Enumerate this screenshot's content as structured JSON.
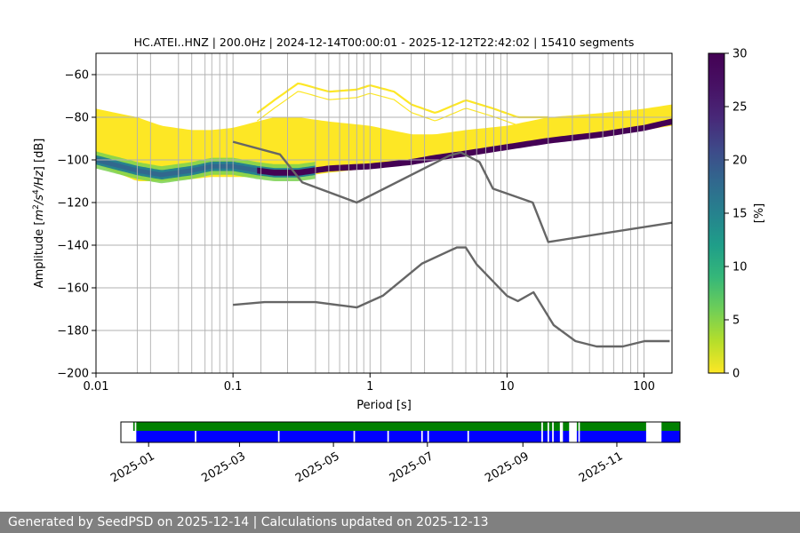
{
  "chart_data": [
    {
      "type": "heatmap",
      "title": "HC.ATEI..HNZ | 200.0Hz | 2024-12-14T00:00:01 - 2025-12-12T22:42:02 | 15410 segments",
      "xlabel": "Period [s]",
      "ylabel_parts": [
        "Amplitude [",
        "m",
        "2",
        "/",
        "s",
        "4",
        "/",
        "Hz",
        "] [dB]"
      ],
      "x_scale": "log",
      "xlim": [
        0.01,
        160
      ],
      "ylim": [
        -200,
        -50
      ],
      "x_ticks": [
        {
          "value": 0.01,
          "label": "0.01"
        },
        {
          "value": 0.1,
          "label": "0.1"
        },
        {
          "value": 1,
          "label": "1"
        },
        {
          "value": 10,
          "label": "10"
        },
        {
          "value": 100,
          "label": "100"
        }
      ],
      "y_ticks": [
        {
          "value": -60,
          "label": "−60"
        },
        {
          "value": -80,
          "label": "−80"
        },
        {
          "value": -100,
          "label": "−100"
        },
        {
          "value": -120,
          "label": "−120"
        },
        {
          "value": -140,
          "label": "−140"
        },
        {
          "value": -160,
          "label": "−160"
        },
        {
          "value": -180,
          "label": "−180"
        },
        {
          "value": -200,
          "label": "−200"
        }
      ],
      "vertical_grid_periods": [
        0.02,
        0.025,
        0.04,
        0.05,
        0.0625,
        0.07,
        0.08,
        0.09,
        0.1,
        0.16,
        0.25,
        0.4,
        0.5,
        0.6,
        0.7,
        0.8,
        0.9,
        1.0,
        1.2,
        2.0,
        2.5,
        4.0,
        5.0,
        6.0,
        7.0,
        8.0,
        9.0,
        10.0,
        20.0,
        30.0,
        40.0,
        50.0,
        60.0,
        70.0,
        80.0,
        90.0,
        100.0
      ],
      "grid": true,
      "heatmap_bands": [
        {
          "name": "mode",
          "period": [
            0.01,
            0.02,
            0.03,
            0.05,
            0.07,
            0.1,
            0.15,
            0.2,
            0.3,
            0.5,
            1,
            2,
            3,
            5,
            10,
            20,
            50,
            100,
            160
          ],
          "dB": [
            -100,
            -105,
            -107,
            -105,
            -103,
            -103,
            -105,
            -106,
            -106,
            -104,
            -103,
            -101,
            -99,
            -97,
            -94,
            -91,
            -88,
            -85,
            -82
          ]
        },
        {
          "name": "upper-envelope",
          "period": [
            0.01,
            0.02,
            0.03,
            0.05,
            0.07,
            0.1,
            0.15,
            0.2,
            0.3,
            0.5,
            1,
            2,
            3,
            5,
            10,
            20,
            50,
            100,
            160
          ],
          "dB": [
            -76,
            -80,
            -84,
            -86,
            -86,
            -85,
            -82,
            -80,
            -80,
            -82,
            -84,
            -88,
            -88,
            -86,
            -84,
            -80,
            -78,
            -76,
            -74
          ]
        },
        {
          "name": "lower-envelope",
          "period": [
            0.01,
            0.02,
            0.03,
            0.05,
            0.07,
            0.1,
            0.15,
            0.2,
            0.3,
            0.5,
            1,
            2,
            3,
            5,
            10,
            20,
            50,
            100,
            160
          ],
          "dB": [
            -102,
            -110,
            -110,
            -109,
            -108,
            -108,
            -108,
            -108,
            -108,
            -106,
            -104,
            -102,
            -100,
            -98,
            -95,
            -92,
            -89,
            -86,
            -84
          ]
        },
        {
          "name": "sparse-upper",
          "period": [
            0.15,
            0.2,
            0.3,
            0.5,
            0.8,
            1.0,
            1.5,
            2,
            3,
            5,
            8,
            12,
            20
          ],
          "dB": [
            -78,
            -72,
            -64,
            -68,
            -67,
            -65,
            -68,
            -74,
            -78,
            -72,
            -76,
            -80,
            -80
          ]
        }
      ],
      "nhnm": {
        "name": "NHNM",
        "period": [
          0.1,
          0.22,
          0.32,
          0.8,
          3.8,
          4.6,
          6.3,
          7.9,
          15.4,
          20.0,
          354.8
        ],
        "dB": [
          -91.5,
          -97.4,
          -110.5,
          -120.0,
          -98.0,
          -96.5,
          -101.0,
          -113.5,
          -120.0,
          -138.5,
          -126.0
        ]
      },
      "nlnm": {
        "name": "NLNM",
        "period": [
          0.1,
          0.17,
          0.4,
          0.8,
          1.24,
          2.4,
          4.3,
          5.0,
          6.0,
          10.0,
          12.0,
          15.6,
          21.9,
          31.6,
          45.0,
          70.0,
          101.0,
          154.0
        ],
        "dB": [
          -168.0,
          -166.7,
          -166.7,
          -169.2,
          -163.7,
          -148.6,
          -141.1,
          -141.1,
          -149.0,
          -163.8,
          -166.2,
          -162.1,
          -177.5,
          -185.0,
          -187.5,
          -187.5,
          -185.0,
          -185.0
        ]
      },
      "colorbar": {
        "label": "[%]",
        "range": [
          0,
          30
        ],
        "ticks": [
          {
            "value": 0,
            "label": "0"
          },
          {
            "value": 5,
            "label": "5"
          },
          {
            "value": 10,
            "label": "10"
          },
          {
            "value": 15,
            "label": "15"
          },
          {
            "value": 20,
            "label": "20"
          },
          {
            "value": 25,
            "label": "25"
          },
          {
            "value": 30,
            "label": "30"
          }
        ]
      },
      "colors": {
        "nm_line": "#666666",
        "grid": "#b0b0b0"
      }
    },
    {
      "type": "timeline",
      "time_range": [
        "2024-12-14",
        "2025-12-12"
      ],
      "tick_labels": [
        {
          "date": "2025-01-01",
          "label": "2025-01"
        },
        {
          "date": "2025-03-01",
          "label": "2025-03"
        },
        {
          "date": "2025-05-01",
          "label": "2025-05"
        },
        {
          "date": "2025-07-01",
          "label": "2025-07"
        },
        {
          "date": "2025-09-01",
          "label": "2025-09"
        },
        {
          "date": "2025-11-01",
          "label": "2025-11"
        }
      ],
      "green_segments": [
        [
          "2024-12-22",
          "2024-12-23"
        ],
        [
          "2024-12-24",
          "2025-09-13"
        ],
        [
          "2025-09-14",
          "2025-09-17"
        ],
        [
          "2025-09-18",
          "2025-09-20"
        ],
        [
          "2025-09-21",
          "2025-09-25"
        ],
        [
          "2025-09-27",
          "2025-10-01"
        ],
        [
          "2025-10-06",
          "2025-10-07"
        ],
        [
          "2025-10-08",
          "2025-11-20"
        ],
        [
          "2025-11-30",
          "2025-12-12"
        ]
      ],
      "blue_segments": [
        [
          "2024-12-24",
          "2025-01-31"
        ],
        [
          "2025-02-01",
          "2025-03-26"
        ],
        [
          "2025-03-27",
          "2025-05-14"
        ],
        [
          "2025-05-15",
          "2025-06-05"
        ],
        [
          "2025-06-06",
          "2025-06-27"
        ],
        [
          "2025-06-28",
          "2025-07-01"
        ],
        [
          "2025-07-02",
          "2025-07-27"
        ],
        [
          "2025-07-28",
          "2025-09-13"
        ],
        [
          "2025-09-14",
          "2025-09-17"
        ],
        [
          "2025-09-18",
          "2025-09-20"
        ],
        [
          "2025-09-21",
          "2025-09-25"
        ],
        [
          "2025-09-27",
          "2025-10-01"
        ],
        [
          "2025-10-06",
          "2025-10-07"
        ],
        [
          "2025-10-08",
          "2025-11-20"
        ],
        [
          "2025-11-30",
          "2025-12-12"
        ]
      ],
      "colors": {
        "green": "#008000",
        "blue": "#0000ff"
      }
    }
  ],
  "footer": {
    "text": "Generated by SeedPSD on 2025-12-14 | Calculations updated on 2025-12-13"
  }
}
